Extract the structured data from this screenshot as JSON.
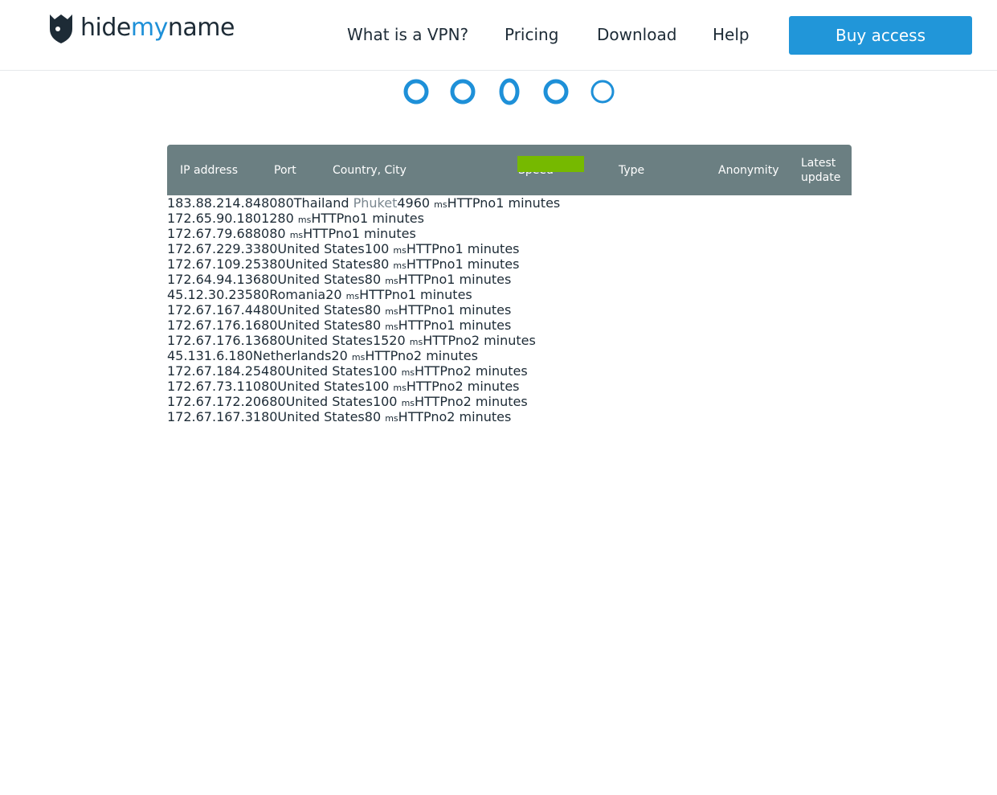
{
  "header": {
    "logo": {
      "part1": "hide",
      "part2": "my",
      "part3": "name"
    },
    "nav": [
      "What is a VPN?",
      "Pricing",
      "Download",
      "Help"
    ],
    "button": "Buy access"
  },
  "table": {
    "columns": [
      "IP address",
      "Port",
      "Country, City",
      "Speed",
      "Type",
      "Anonymity",
      "Latest update"
    ],
    "rows": [
      {
        "ip": "183.88.214.84",
        "port": "8080",
        "country": "Thailand",
        "city": "Phuket",
        "speed": "4960",
        "unit": "ms",
        "type": "HTTP",
        "anonymity": "no",
        "updated": "1 minutes"
      },
      {
        "ip": "172.65.90.1",
        "port": "80",
        "speed": "1280",
        "unit": "ms",
        "type": "HTTP",
        "anonymity": "no",
        "updated": "1 minutes"
      },
      {
        "ip": "172.67.79.68",
        "port": "80",
        "speed": "80",
        "unit": "ms",
        "type": "HTTP",
        "anonymity": "no",
        "updated": "1 minutes"
      },
      {
        "ip": "172.67.229.33",
        "port": "80",
        "country": "United States",
        "speed": "100",
        "unit": "ms",
        "type": "HTTP",
        "anonymity": "no",
        "updated": "1 minutes"
      },
      {
        "ip": "172.67.109.253",
        "port": "80",
        "country": "United States",
        "speed": "80",
        "unit": "ms",
        "type": "HTTP",
        "anonymity": "no",
        "updated": "1 minutes"
      },
      {
        "ip": "172.64.94.136",
        "port": "80",
        "country": "United States",
        "speed": "80",
        "unit": "ms",
        "type": "HTTP",
        "anonymity": "no",
        "updated": "1 minutes"
      },
      {
        "ip": "45.12.30.235",
        "port": "80",
        "country": "Romania",
        "speed": "20",
        "unit": "ms",
        "type": "HTTP",
        "anonymity": "no",
        "updated": "1 minutes"
      },
      {
        "ip": "172.67.167.44",
        "port": "80",
        "country": "United States",
        "speed": "80",
        "unit": "ms",
        "type": "HTTP",
        "anonymity": "no",
        "updated": "1 minutes"
      },
      {
        "ip": "172.67.176.16",
        "port": "80",
        "country": "United States",
        "speed": "80",
        "unit": "ms",
        "type": "HTTP",
        "anonymity": "no",
        "updated": "1 minutes"
      },
      {
        "ip": "172.67.176.136",
        "port": "80",
        "country": "United States",
        "speed": "1520",
        "unit": "ms",
        "type": "HTTP",
        "anonymity": "no",
        "updated": "2 minutes"
      },
      {
        "ip": "45.131.6.1",
        "port": "80",
        "country": "Netherlands",
        "speed": "20",
        "unit": "ms",
        "type": "HTTP",
        "anonymity": "no",
        "updated": "2 minutes"
      },
      {
        "ip": "172.67.184.254",
        "port": "80",
        "country": "United States",
        "speed": "100",
        "unit": "ms",
        "type": "HTTP",
        "anonymity": "no",
        "updated": "2 minutes"
      },
      {
        "ip": "172.67.73.110",
        "port": "80",
        "country": "United States",
        "speed": "100",
        "unit": "ms",
        "type": "HTTP",
        "anonymity": "no",
        "updated": "2 minutes"
      },
      {
        "ip": "172.67.172.206",
        "port": "80",
        "country": "United States",
        "speed": "100",
        "unit": "ms",
        "type": "HTTP",
        "anonymity": "no",
        "updated": "2 minutes"
      },
      {
        "ip": "172.67.167.31",
        "port": "80",
        "country": "United States",
        "speed": "80",
        "unit": "ms",
        "type": "HTTP",
        "anonymity": "no",
        "updated": "2 minutes"
      }
    ]
  }
}
